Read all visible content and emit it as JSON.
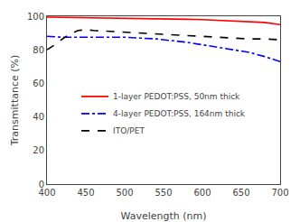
{
  "chart_data": {
    "type": "line",
    "title": "",
    "xlabel": "Wavelength (nm)",
    "ylabel": "Transmittance (%)",
    "xlim": [
      400,
      700
    ],
    "ylim": [
      0,
      100
    ],
    "xticks": [
      400,
      450,
      500,
      550,
      600,
      650,
      700
    ],
    "yticks": [
      0,
      20,
      40,
      60,
      80,
      100
    ],
    "grid": false,
    "legend": "center",
    "series": [
      {
        "name": "1-layer PEDOT:PSS, 50nm thick",
        "color": "#ff0000",
        "line_style": "solid",
        "x": [
          400,
          420,
          440,
          460,
          480,
          500,
          520,
          540,
          560,
          580,
          600,
          620,
          640,
          660,
          680,
          700
        ],
        "values": [
          99.5,
          99.4,
          99.3,
          99.2,
          99.1,
          99.0,
          98.8,
          98.6,
          98.4,
          98.2,
          98.0,
          97.6,
          97.2,
          96.8,
          96.3,
          95.0
        ]
      },
      {
        "name": "4-layer PEDOT:PSS, 164nm thick",
        "color": "#0000ff",
        "line_style": "dashdot",
        "x": [
          400,
          420,
          440,
          460,
          480,
          500,
          520,
          540,
          560,
          580,
          600,
          620,
          640,
          660,
          680,
          700
        ],
        "values": [
          88.0,
          87.5,
          87.5,
          87.5,
          87.5,
          87.5,
          87.0,
          86.5,
          85.5,
          84.5,
          83.0,
          81.5,
          80.0,
          78.5,
          76.0,
          73.0
        ]
      },
      {
        "name": "ITO/PET",
        "color": "#000000",
        "line_style": "dash",
        "x": [
          400,
          410,
          420,
          430,
          440,
          450,
          460,
          480,
          500,
          520,
          540,
          560,
          580,
          600,
          620,
          640,
          660,
          680,
          700
        ],
        "values": [
          80.0,
          83.0,
          86.5,
          89.5,
          91.5,
          92.0,
          91.5,
          91.0,
          90.5,
          90.0,
          89.5,
          89.0,
          88.5,
          88.0,
          87.5,
          87.0,
          86.5,
          86.5,
          86.0
        ]
      }
    ]
  }
}
